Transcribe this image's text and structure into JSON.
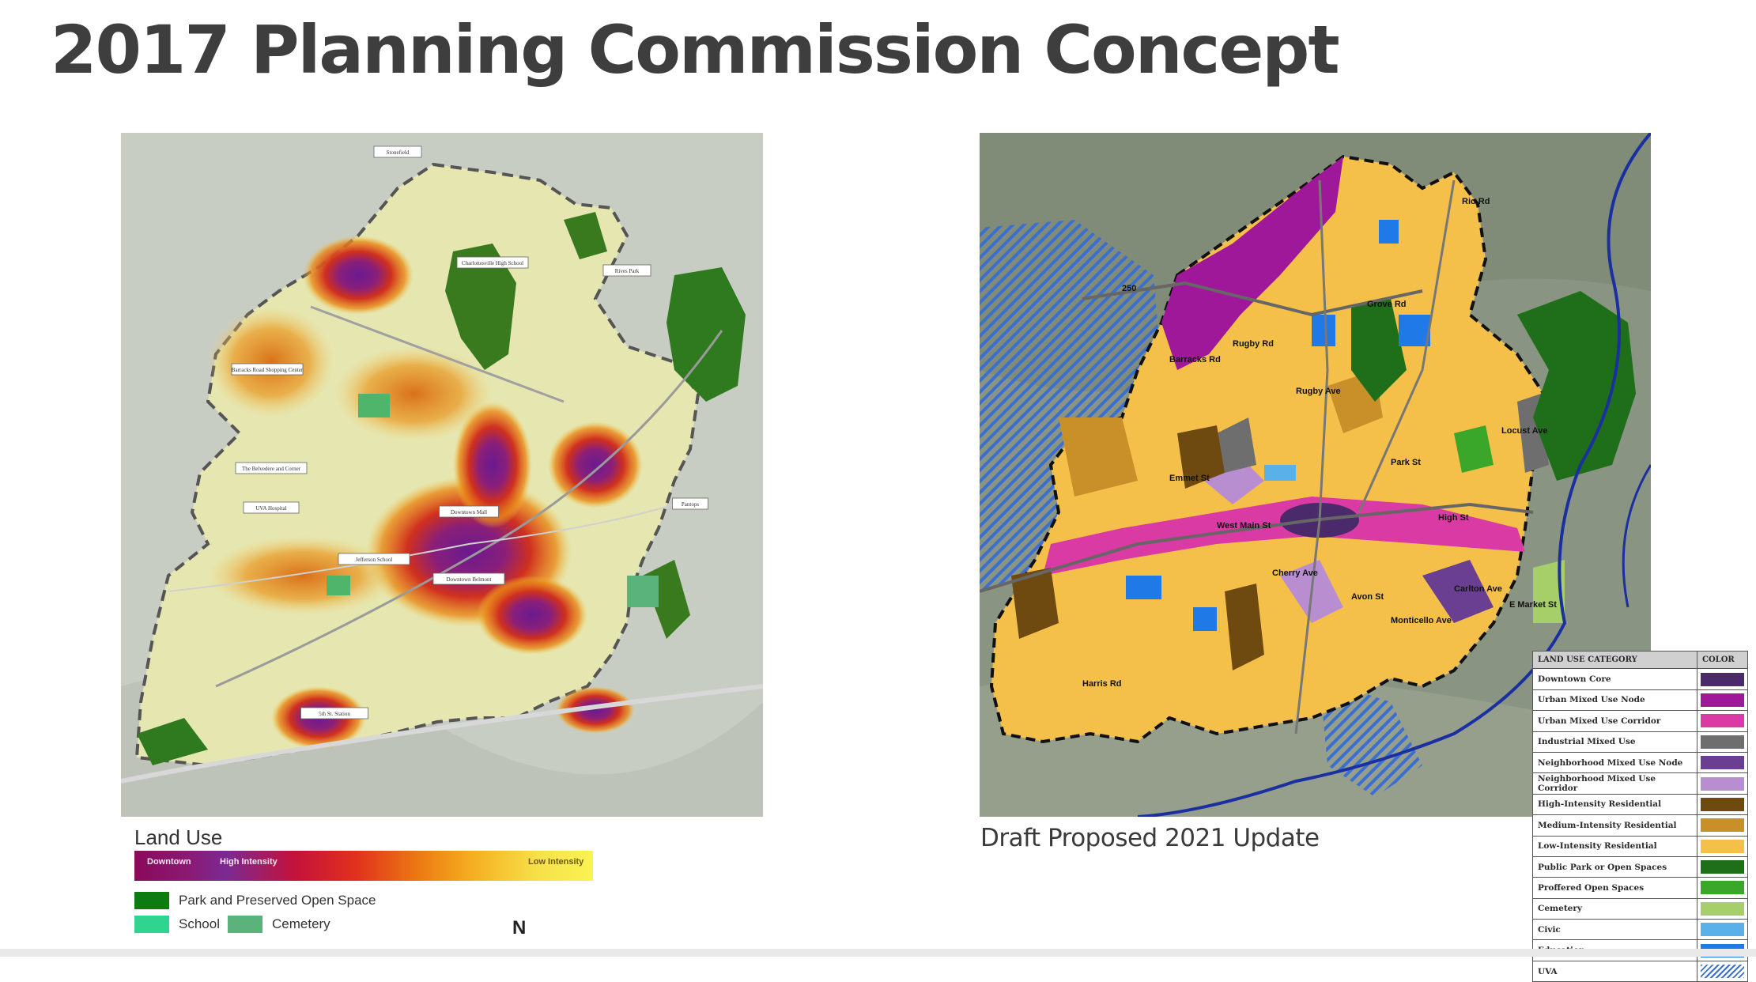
{
  "page": {
    "title": "2017 Planning Commission Concept"
  },
  "left_map": {
    "labels": [
      "Stonefield",
      "Charlottesville High School",
      "Barracks Road Shopping Center",
      "The Belvedere and Corner",
      "UVA Hospital",
      "Jefferson School",
      "Downtown Mall",
      "Downtown Belmont",
      "Pantops",
      "5th St. Station",
      "Rives Park"
    ],
    "legend": {
      "title": "Land Use",
      "gradient_labels": {
        "downtown": "Downtown",
        "high": "High Intensity",
        "low": "Low Intensity"
      },
      "items": [
        {
          "label": "Park and Preserved Open Space",
          "color": "#0e7a12"
        }
      ],
      "items_row2": [
        {
          "label": "School",
          "color": "#2ed48f"
        },
        {
          "label": "Cemetery",
          "color": "#5ab37a"
        }
      ],
      "north": "N"
    }
  },
  "right_map": {
    "caption": "Draft Proposed 2021 Update",
    "road_labels": [
      "250",
      "Grove Rd",
      "Rugby Rd",
      "Rugby Ave",
      "Barracks Rd",
      "Emmet St",
      "Park St",
      "High St",
      "West Main St",
      "Cherry Ave",
      "Avon St",
      "Monticello Ave",
      "Carlton Ave",
      "E Market St",
      "Harris Rd",
      "Rio Rd",
      "Locust Ave"
    ],
    "legend": {
      "header_category": "LAND USE CATEGORY",
      "header_color": "COLOR",
      "rows": [
        {
          "label": "Downtown Core",
          "color": "#4a2a6a"
        },
        {
          "label": "Urban Mixed Use Node",
          "color": "#a0189a"
        },
        {
          "label": "Urban Mixed Use Corridor",
          "color": "#d93aa3"
        },
        {
          "label": "Industrial Mixed Use",
          "color": "#6e6e6e"
        },
        {
          "label": "Neighborhood Mixed Use Node",
          "color": "#6a3f92"
        },
        {
          "label": "Neighborhood Mixed Use Corridor",
          "color": "#b98ed1"
        },
        {
          "label": "High-Intensity Residential",
          "color": "#6e4a10"
        },
        {
          "label": "Medium-Intensity Residential",
          "color": "#c9902a"
        },
        {
          "label": "Low-Intensity Residential",
          "color": "#f5c04a"
        },
        {
          "label": "Public Park or Open Spaces",
          "color": "#1f6e1a"
        },
        {
          "label": "Proffered Open Spaces",
          "color": "#3aa62a"
        },
        {
          "label": "Cemetery",
          "color": "#a6cf6a"
        },
        {
          "label": "Civic",
          "color": "#5ab0e8"
        },
        {
          "label": "Education",
          "color": "#1f7ae8"
        },
        {
          "label": "UVA",
          "color": "#3a6fd1"
        }
      ]
    }
  }
}
